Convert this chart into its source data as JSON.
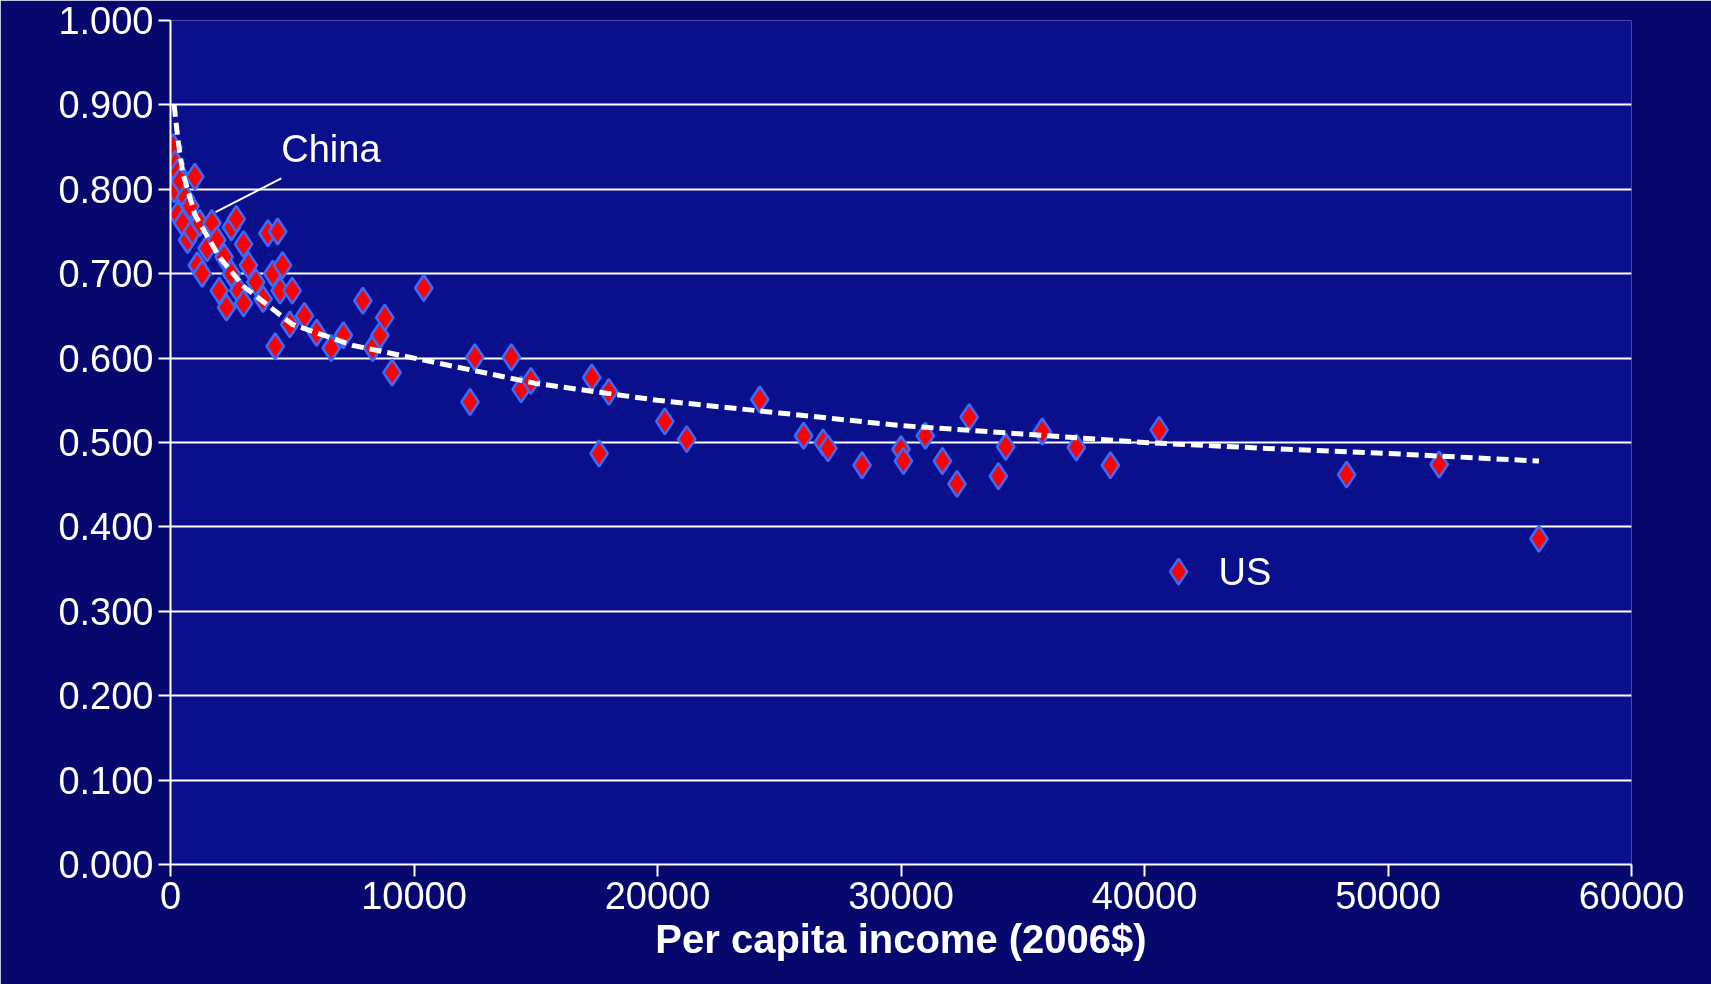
{
  "chart_data": {
    "type": "scatter",
    "xlabel": "Per capita income (2006$)",
    "xlim": [
      0,
      60000
    ],
    "xticks": [
      0,
      10000,
      20000,
      30000,
      40000,
      50000,
      60000
    ],
    "ylim": [
      0,
      1
    ],
    "yticks": [
      {
        "value": 0,
        "label": "0.000"
      },
      {
        "value": 0.1,
        "label": "0.100"
      },
      {
        "value": 0.2,
        "label": "0.200"
      },
      {
        "value": 0.3,
        "label": "0.300"
      },
      {
        "value": 0.4,
        "label": "0.400"
      },
      {
        "value": 0.5,
        "label": "0.500"
      },
      {
        "value": 0.6,
        "label": "0.600"
      },
      {
        "value": 0.7,
        "label": "0.700"
      },
      {
        "value": 0.8,
        "label": "0.800"
      },
      {
        "value": 0.9,
        "label": "0.900"
      },
      {
        "value": 1,
        "label": "1.000"
      }
    ],
    "grid": "y",
    "series": [
      {
        "marker": "diamond",
        "color": "#ff0000",
        "x": [
          100,
          200,
          300,
          150,
          400,
          600,
          300,
          500,
          800,
          1000,
          700,
          900,
          1200,
          1100,
          1500,
          1300,
          1700,
          1900,
          2000,
          2200,
          2300,
          2500,
          2500,
          2700,
          2800,
          3000,
          3000,
          3200,
          3500,
          3800,
          4000,
          4400,
          4200,
          4600,
          4500,
          5000,
          4300,
          4900,
          5500,
          6000,
          6600,
          7100,
          7900,
          8300,
          8600,
          8800,
          9100,
          10400,
          12300,
          12500,
          14000,
          14400,
          14800,
          17300,
          17600,
          18000,
          20300,
          21200,
          24200,
          26000,
          26800,
          27000,
          28400,
          30000,
          30100,
          31000,
          31700,
          32300,
          32800,
          34000,
          34300,
          35800,
          37200,
          38600,
          40600,
          41400,
          48300,
          52100,
          56200
        ],
        "values": [
          0.85,
          0.83,
          0.82,
          0.8,
          0.81,
          0.79,
          0.77,
          0.76,
          0.78,
          0.815,
          0.74,
          0.75,
          0.76,
          0.71,
          0.73,
          0.7,
          0.76,
          0.74,
          0.68,
          0.72,
          0.66,
          0.755,
          0.7,
          0.765,
          0.68,
          0.735,
          0.665,
          0.71,
          0.69,
          0.67,
          0.748,
          0.75,
          0.7,
          0.71,
          0.68,
          0.68,
          0.614,
          0.64,
          0.65,
          0.63,
          0.612,
          0.627,
          0.668,
          0.612,
          0.627,
          0.648,
          0.583,
          0.683,
          0.548,
          0.601,
          0.601,
          0.563,
          0.573,
          0.577,
          0.487,
          0.56,
          0.525,
          0.504,
          0.551,
          0.508,
          0.5,
          0.493,
          0.473,
          0.492,
          0.478,
          0.508,
          0.478,
          0.451,
          0.53,
          0.46,
          0.495,
          0.513,
          0.494,
          0.473,
          0.515,
          0.347,
          0.462,
          0.474,
          0.386
        ]
      },
      {
        "type": "line",
        "marker": "none",
        "line_style": "dashed",
        "color": "#ffffff",
        "x": [
          150,
          300,
          500,
          1000,
          2000,
          3000,
          5000,
          7500,
          10000,
          15000,
          20000,
          25000,
          30000,
          35000,
          40000,
          45000,
          50000,
          56200
        ],
        "values": [
          0.9,
          0.86,
          0.82,
          0.77,
          0.72,
          0.685,
          0.64,
          0.615,
          0.6,
          0.57,
          0.55,
          0.535,
          0.52,
          0.51,
          0.5,
          0.493,
          0.487,
          0.478
        ]
      }
    ],
    "annotations": [
      {
        "text": "China",
        "x": 1850,
        "y": 0.773
      },
      {
        "text": "US",
        "x": 41400,
        "y": 0.347
      }
    ]
  }
}
